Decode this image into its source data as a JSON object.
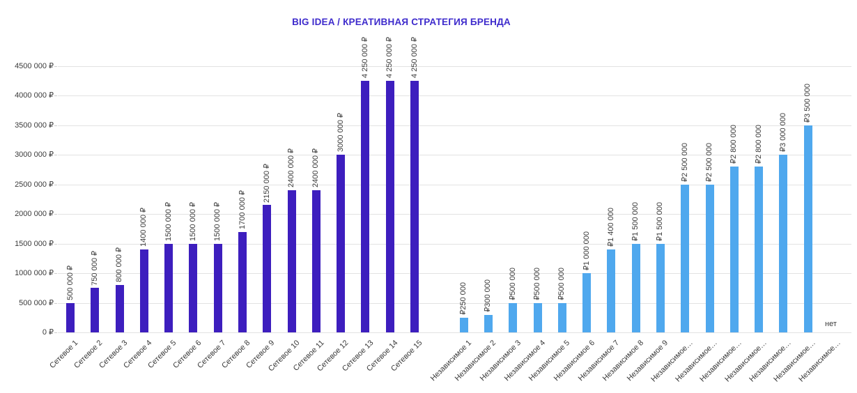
{
  "colors": {
    "title": "#3e2bcc",
    "network_bar": "#3d1ebe",
    "independent_bar": "#4fa8ee",
    "gridline": "#e2e2e2",
    "text": "#3a3a3a",
    "background": "#ffffff"
  },
  "chart_data": {
    "type": "bar",
    "title": "BIG IDEA / КРЕАТИВНАЯ СТРАТЕГИЯ БРЕНДА",
    "xlabel": "",
    "ylabel": "",
    "ylim": [
      0,
      4500000
    ],
    "ytick_step": 500000,
    "ytick_labels": [
      "0 ₽",
      "500 000 ₽",
      "1000 000 ₽",
      "1500 000 ₽",
      "2000 000 ₽",
      "2500 000 ₽",
      "3000 000 ₽",
      "3500 000 ₽",
      "4000 000 ₽",
      "4500 000 ₽"
    ],
    "grid": true,
    "legend": false,
    "value_labels_rotation": 90,
    "category_labels_rotation": 45,
    "series": [
      {
        "name": "Сетевое",
        "color": "#3d1ebe",
        "categories": [
          "Сетевое 1",
          "Сетевое 2",
          "Сетевое 3",
          "Сетевое 4",
          "Сетевое 5",
          "Сетевое 6",
          "Сетевое 7",
          "Сетевое 8",
          "Сетевое 9",
          "Сетевое 10",
          "Сетевое 11",
          "Сетевое 12",
          "Сетевое 13",
          "Сетевое 14",
          "Сетевое 15"
        ],
        "values": [
          500000,
          750000,
          800000,
          1400000,
          1500000,
          1500000,
          1500000,
          1700000,
          2150000,
          2400000,
          2400000,
          3000000,
          4250000,
          4250000,
          4250000
        ],
        "value_labels": [
          "500 000 ₽",
          "750 000 ₽",
          "800 000 ₽",
          "1400 000 ₽",
          "1500 000 ₽",
          "1500 000 ₽",
          "1500 000 ₽",
          "1700 000 ₽",
          "2150 000 ₽",
          "2400 000 ₽",
          "2400 000 ₽",
          "3000 000 ₽",
          "4 250 000 ₽",
          "4 250 000 ₽",
          "4 250 000 ₽"
        ]
      },
      {
        "name": "Независимое",
        "color": "#4fa8ee",
        "categories": [
          "Независимое 1",
          "Независимое 2",
          "Независимое 3",
          "Независимое 4",
          "Независимое 5",
          "Независимое 6",
          "Независимое 7",
          "Независимое 8",
          "Независимое 9",
          "Независимое…",
          "Независимое…",
          "Независимое…",
          "Независимое…",
          "Независимое…",
          "Независимое…",
          "Независимое…"
        ],
        "values": [
          250000,
          300000,
          500000,
          500000,
          500000,
          1000000,
          1400000,
          1500000,
          1500000,
          2500000,
          2500000,
          2800000,
          2800000,
          3000000,
          3500000,
          null
        ],
        "value_labels": [
          "₽250 000",
          "₽300 000",
          "₽500 000",
          "₽500 000",
          "₽500 000",
          "₽1 000 000",
          "₽1 400 000",
          "₽1 500 000",
          "₽1 500 000",
          "₽2 500 000",
          "₽2 500 000",
          "₽2 800 000",
          "₽2 800 000",
          "₽3 000 000",
          "₽3 500 000",
          "нет"
        ]
      }
    ]
  }
}
